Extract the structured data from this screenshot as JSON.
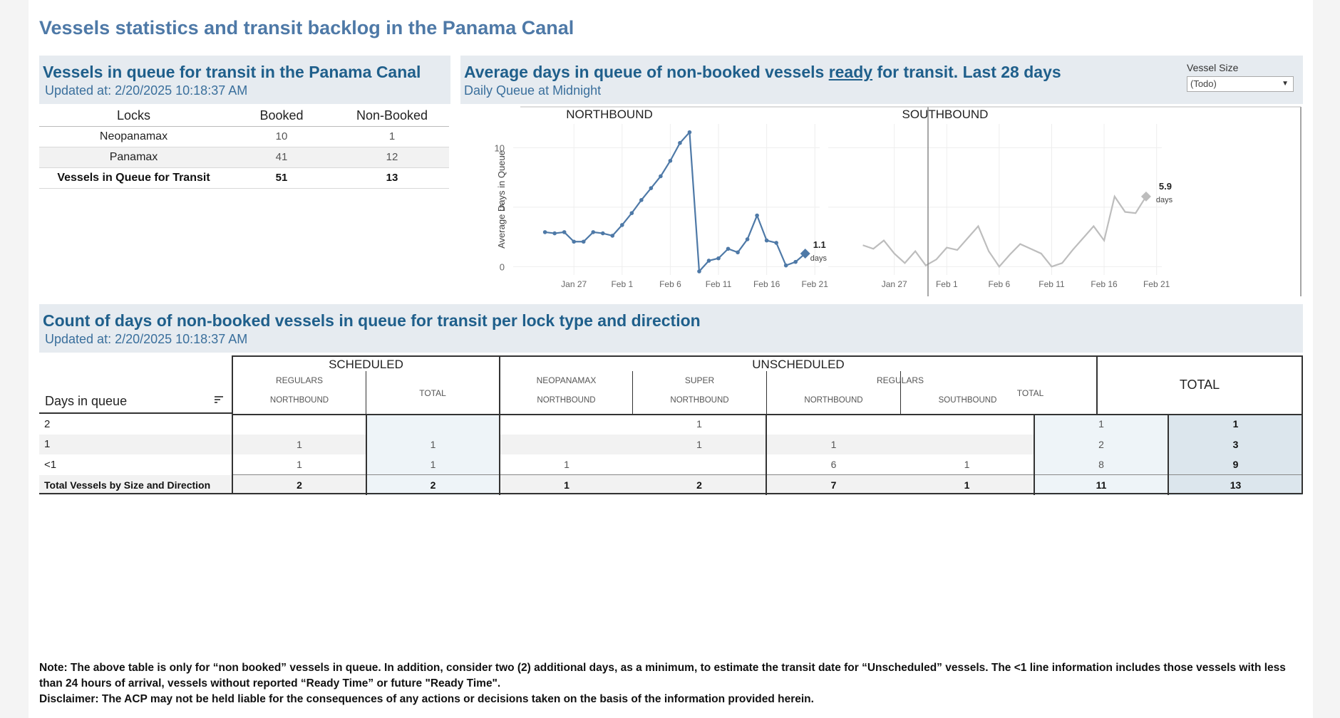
{
  "page_title": "Vessels statistics and transit backlog in the Panama Canal",
  "queue_panel": {
    "title": "Vessels in queue for transit in the Panama Canal",
    "updated": "Updated at:  2/20/2025 10:18:37 AM",
    "headers": [
      "Locks",
      "Booked",
      "Non-Booked"
    ],
    "rows": [
      {
        "lock": "Neopanamax",
        "booked": "10",
        "non_booked": "1"
      },
      {
        "lock": "Panamax",
        "booked": "41",
        "non_booked": "12"
      },
      {
        "lock": "Vessels in Queue for Transit",
        "booked": "51",
        "non_booked": "13"
      }
    ]
  },
  "avg_panel": {
    "title_part1": "Average days in queue of non-booked vessels ",
    "title_underlined": "ready",
    "title_part2": " for transit. Last 28 days",
    "subtitle": "Daily Queue at Midnight",
    "filter_label": "Vessel Size",
    "filter_value": "(Todo)",
    "filter_arrow": "▼"
  },
  "chart_data": {
    "type": "line",
    "ylabel": "Average Days in Queue",
    "ylim": [
      -0.7,
      12
    ],
    "yticks": [
      0,
      5,
      10
    ],
    "x_tick_labels": [
      "Jan 27",
      "Feb 1",
      "Feb 6",
      "Feb 11",
      "Feb 16",
      "Feb 21"
    ],
    "x_tick_days": [
      6,
      11,
      16,
      21,
      26,
      31
    ],
    "xlim": [
      -0.3,
      31.5
    ],
    "grid": true,
    "panels": [
      {
        "name": "NORTHBOUND",
        "color": "#4e79a7",
        "x": [
          3,
          4,
          5,
          6,
          7,
          8,
          9,
          10,
          11,
          12,
          13,
          14,
          15,
          16,
          17,
          18,
          19,
          20,
          21,
          22,
          23,
          24,
          25,
          26,
          27,
          28,
          29,
          30
        ],
        "values": [
          2.9,
          2.8,
          2.9,
          2.1,
          2.1,
          2.9,
          2.8,
          2.6,
          3.5,
          4.5,
          5.6,
          6.6,
          7.6,
          8.9,
          10.4,
          11.3,
          -0.4,
          0.5,
          0.7,
          1.5,
          1.2,
          2.3,
          4.3,
          2.2,
          2.0,
          0.1,
          0.4,
          1.1
        ],
        "end_label": "1.1",
        "end_unit": "days"
      },
      {
        "name": "SOUTHBOUND",
        "color": "#bdbdbd",
        "x": [
          3,
          4,
          5,
          6,
          7,
          8,
          9,
          10,
          11,
          12,
          13,
          14,
          15,
          16,
          17,
          18,
          19,
          20,
          21,
          22,
          23,
          24,
          25,
          26,
          27,
          28,
          29,
          30
        ],
        "values": [
          1.8,
          1.5,
          2.2,
          1.1,
          0.3,
          1.3,
          0.1,
          0.6,
          1.6,
          1.4,
          2.4,
          3.4,
          1.3,
          0,
          1.0,
          1.9,
          1.5,
          1.1,
          0,
          0.3,
          1.4,
          2.4,
          3.4,
          2.2,
          5.9,
          4.6,
          4.5,
          5.9
        ],
        "end_label": "5.9",
        "end_unit": "days"
      }
    ]
  },
  "count_panel": {
    "title": "Count of days of non-booked vessels in queue for transit per lock type and direction",
    "updated": "Updated at:  2/20/2025 10:18:37 AM",
    "groups": {
      "scheduled": "SCHEDULED",
      "unscheduled": "UNSCHEDULED"
    },
    "subgroups": {
      "regulars": "REGULARS",
      "neopanamax": "NEOPANAMAX",
      "super": "SUPER",
      "total": "TOTAL"
    },
    "directions": {
      "north": "NORTHBOUND",
      "south": "SOUTHBOUND"
    },
    "grand_total_header": "TOTAL",
    "row_header": "Days in queue",
    "sort_icon": "sort-icon",
    "rows": [
      {
        "label": "2",
        "s_reg_n": "",
        "s_total": "",
        "u_neo_n": "",
        "u_sup_n": "1",
        "u_reg_n": "",
        "u_reg_s": "",
        "u_total": "1",
        "total": "1"
      },
      {
        "label": "1",
        "s_reg_n": "1",
        "s_total": "1",
        "u_neo_n": "",
        "u_sup_n": "1",
        "u_reg_n": "1",
        "u_reg_s": "",
        "u_total": "2",
        "total": "3"
      },
      {
        "label": "<1",
        "s_reg_n": "1",
        "s_total": "1",
        "u_neo_n": "1",
        "u_sup_n": "",
        "u_reg_n": "6",
        "u_reg_s": "1",
        "u_total": "8",
        "total": "9"
      },
      {
        "label": "Total Vessels by Size and Direction",
        "s_reg_n": "2",
        "s_total": "2",
        "u_neo_n": "1",
        "u_sup_n": "2",
        "u_reg_n": "7",
        "u_reg_s": "1",
        "u_total": "11",
        "total": "13"
      }
    ]
  },
  "note": "Note:  The above table is only for “non booked” vessels in queue. In addition, consider two (2) additional days, as a minimum, to estimate the transit date for “Unscheduled” vessels.  The <1 line information includes those vessels with less than 24 hours of arrival, vessels without reported “Ready Time” or future \"Ready Time\".",
  "disclaimer": "Disclaimer: The ACP may not be held liable for the consequences of any actions or decisions taken on the basis of the information provided herein.",
  "colors": {
    "accent": "#4e79a7",
    "header_bg": "#e6ebf0",
    "total_col_bg": "#dce6ed",
    "subtotal_col_bg": "#eef4f8"
  }
}
